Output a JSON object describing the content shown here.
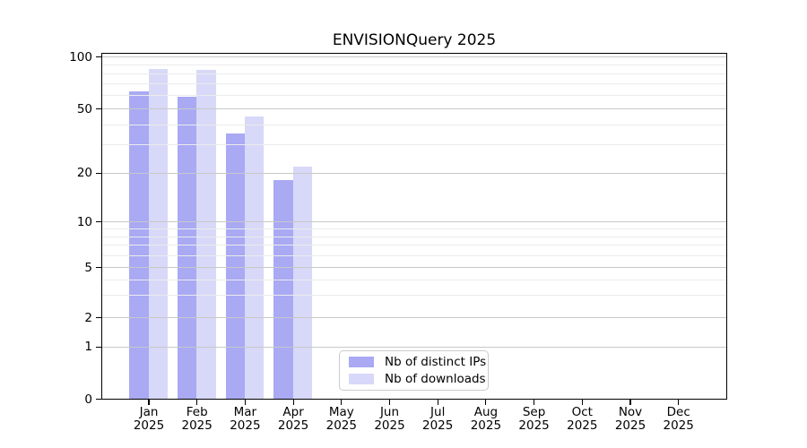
{
  "chart_data": {
    "type": "bar",
    "title": "ENVISIONQuery 2025",
    "categories": [
      "Jan",
      "Feb",
      "Mar",
      "Apr",
      "May",
      "Jun",
      "Jul",
      "Aug",
      "Sep",
      "Oct",
      "Nov",
      "Dec"
    ],
    "x_tick_year": "2025",
    "series": [
      {
        "name": "Nb of distinct IPs",
        "color": "#a9a9f4",
        "values": [
          63,
          59,
          35,
          18,
          null,
          null,
          null,
          null,
          null,
          null,
          null,
          null
        ]
      },
      {
        "name": "Nb of downloads",
        "color": "#d8d8f9",
        "values": [
          85,
          84,
          45,
          22,
          null,
          null,
          null,
          null,
          null,
          null,
          null,
          null
        ]
      }
    ],
    "y_ticks": [
      0,
      1,
      2,
      5,
      10,
      20,
      50,
      100
    ],
    "y_minor_ticks": [
      3,
      4,
      6,
      7,
      8,
      9,
      30,
      40,
      60,
      70,
      80,
      90
    ],
    "ylim": [
      0,
      105
    ],
    "yscale": "log-like (log decades above 1, linear 0 to 1)",
    "grid": "horizontal major and minor, drawn over bars",
    "legend_position": "lower center",
    "axis_color": "#000000",
    "major_grid_color": "#c8c8c8",
    "minor_grid_color": "#ebebeb"
  }
}
